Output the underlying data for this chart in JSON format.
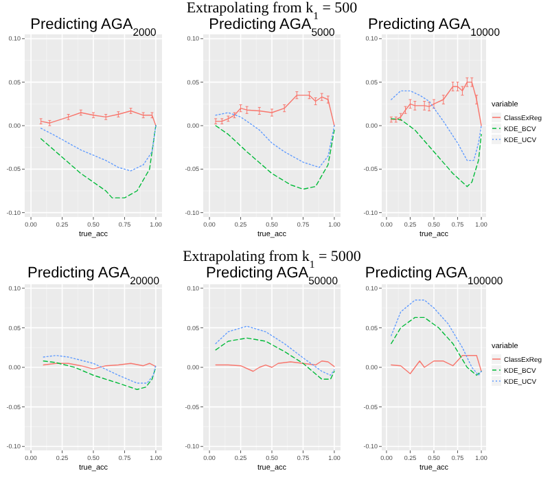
{
  "chart_data": [
    {
      "type": "line",
      "title": "Predicting AGA$_{2000}$",
      "xlabel": "true_acc",
      "xlim": [
        -0.05,
        1.05
      ],
      "ylim": [
        -0.105,
        0.105
      ],
      "xticks": [
        {
          "value": 0,
          "label": "0.00"
        },
        {
          "value": 0.25,
          "label": "0.25"
        },
        {
          "value": 0.5,
          "label": "0.50"
        },
        {
          "value": 0.75,
          "label": "0.75"
        },
        {
          "value": 1,
          "label": "1.00"
        }
      ],
      "yticks": [
        {
          "value": -0.1,
          "label": "-0.10"
        },
        {
          "value": -0.05,
          "label": "-0.05"
        },
        {
          "value": 0,
          "label": "0.00"
        },
        {
          "value": 0.05,
          "label": "0.05"
        },
        {
          "value": 0.1,
          "label": "0.10"
        }
      ],
      "grid": true,
      "series": [
        {
          "color": "#f8766d",
          "line_style": "solid",
          "x": [
            0.08,
            0.15,
            0.3,
            0.4,
            0.5,
            0.6,
            0.7,
            0.8,
            0.9,
            0.97,
            1.0
          ],
          "values": [
            0.005,
            0.003,
            0.01,
            0.015,
            0.012,
            0.01,
            0.013,
            0.017,
            0.012,
            0.012,
            0.0
          ],
          "errors": [
            0.003,
            0.003,
            0.003,
            0.003,
            0.003,
            0.003,
            0.003,
            0.003,
            0.003,
            0.003,
            null
          ]
        },
        {
          "color": "#00ba38",
          "line_style": "dashed",
          "x": [
            0.08,
            0.2,
            0.4,
            0.6,
            0.65,
            0.75,
            0.85,
            0.95,
            1.0
          ],
          "values": [
            -0.015,
            -0.03,
            -0.055,
            -0.075,
            -0.083,
            -0.083,
            -0.075,
            -0.05,
            0.0
          ]
        },
        {
          "color": "#619cff",
          "line_style": "dotted",
          "x": [
            0.08,
            0.2,
            0.4,
            0.6,
            0.7,
            0.8,
            0.9,
            0.97,
            1.0
          ],
          "values": [
            -0.003,
            -0.012,
            -0.028,
            -0.04,
            -0.048,
            -0.052,
            -0.045,
            -0.03,
            0.0
          ]
        }
      ]
    },
    {
      "type": "line",
      "title": "Predicting AGA$_{5000}$",
      "annotations": [
        "Extrapolating from k$_{1}$ = 500"
      ],
      "xlabel": "true_acc",
      "xlim": [
        -0.05,
        1.05
      ],
      "ylim": [
        -0.105,
        0.105
      ],
      "xticks": [
        {
          "value": 0,
          "label": "0.00"
        },
        {
          "value": 0.25,
          "label": "0.25"
        },
        {
          "value": 0.5,
          "label": "0.50"
        },
        {
          "value": 0.75,
          "label": "0.75"
        },
        {
          "value": 1,
          "label": "1.00"
        }
      ],
      "yticks": [
        {
          "value": -0.1,
          "label": "-0.10"
        },
        {
          "value": -0.05,
          "label": "-0.05"
        },
        {
          "value": 0,
          "label": "0.00"
        },
        {
          "value": 0.05,
          "label": "0.05"
        },
        {
          "value": 0.1,
          "label": "0.10"
        }
      ],
      "grid": true,
      "series": [
        {
          "color": "#f8766d",
          "line_style": "solid",
          "x": [
            0.05,
            0.1,
            0.15,
            0.2,
            0.25,
            0.3,
            0.4,
            0.5,
            0.6,
            0.7,
            0.8,
            0.85,
            0.9,
            0.95,
            1.0
          ],
          "values": [
            0.005,
            0.005,
            0.008,
            0.012,
            0.02,
            0.018,
            0.017,
            0.015,
            0.02,
            0.035,
            0.035,
            0.028,
            0.033,
            0.03,
            0.0
          ],
          "errors": [
            0.003,
            0.003,
            0.003,
            0.003,
            0.004,
            0.004,
            0.004,
            0.004,
            0.004,
            0.004,
            0.004,
            0.004,
            0.004,
            0.004,
            null
          ]
        },
        {
          "color": "#00ba38",
          "line_style": "dashed",
          "x": [
            0.05,
            0.15,
            0.3,
            0.5,
            0.65,
            0.75,
            0.85,
            0.95,
            1.0
          ],
          "values": [
            0.0,
            -0.01,
            -0.03,
            -0.055,
            -0.068,
            -0.073,
            -0.07,
            -0.045,
            -0.005
          ]
        },
        {
          "color": "#619cff",
          "line_style": "dotted",
          "x": [
            0.05,
            0.15,
            0.25,
            0.4,
            0.5,
            0.6,
            0.75,
            0.88,
            0.95,
            1.0
          ],
          "values": [
            0.012,
            0.015,
            0.01,
            -0.005,
            -0.02,
            -0.03,
            -0.042,
            -0.048,
            -0.035,
            0.0
          ]
        }
      ]
    },
    {
      "type": "line",
      "title": "Predicting AGA$_{10000}$",
      "xlabel": "true_acc",
      "legend": "right",
      "legend_title": "variable",
      "xlim": [
        -0.05,
        1.05
      ],
      "ylim": [
        -0.105,
        0.105
      ],
      "xticks": [
        {
          "value": 0,
          "label": "0.00"
        },
        {
          "value": 0.25,
          "label": "0.25"
        },
        {
          "value": 0.5,
          "label": "0.50"
        },
        {
          "value": 0.75,
          "label": "0.75"
        },
        {
          "value": 1,
          "label": "1.00"
        }
      ],
      "yticks": [
        {
          "value": -0.1,
          "label": "-0.10"
        },
        {
          "value": -0.05,
          "label": "-0.05"
        },
        {
          "value": 0,
          "label": "0.00"
        },
        {
          "value": 0.05,
          "label": "0.05"
        },
        {
          "value": 0.1,
          "label": "0.10"
        }
      ],
      "grid": true,
      "series": [
        {
          "name": "ClassExReg",
          "color": "#f8766d",
          "line_style": "solid",
          "x": [
            0.05,
            0.1,
            0.15,
            0.2,
            0.25,
            0.3,
            0.4,
            0.45,
            0.5,
            0.6,
            0.7,
            0.75,
            0.8,
            0.85,
            0.9,
            0.95,
            1.0
          ],
          "values": [
            0.007,
            0.007,
            0.01,
            0.018,
            0.025,
            0.023,
            0.023,
            0.022,
            0.025,
            0.03,
            0.045,
            0.045,
            0.04,
            0.05,
            0.05,
            0.03,
            0.0
          ],
          "errors": [
            0.003,
            0.003,
            0.004,
            0.004,
            0.005,
            0.005,
            0.005,
            0.005,
            0.005,
            0.005,
            0.005,
            0.005,
            0.005,
            0.005,
            0.005,
            0.005,
            null
          ]
        },
        {
          "name": "KDE_BCV",
          "color": "#00ba38",
          "line_style": "dashed",
          "x": [
            0.05,
            0.15,
            0.3,
            0.5,
            0.7,
            0.85,
            0.9,
            0.97,
            1.0
          ],
          "values": [
            0.008,
            0.007,
            -0.005,
            -0.03,
            -0.055,
            -0.07,
            -0.065,
            -0.04,
            -0.01
          ]
        },
        {
          "name": "KDE_UCV",
          "color": "#619cff",
          "line_style": "dotted",
          "x": [
            0.05,
            0.15,
            0.25,
            0.35,
            0.45,
            0.6,
            0.75,
            0.85,
            0.92,
            0.97,
            1.0
          ],
          "values": [
            0.03,
            0.04,
            0.04,
            0.035,
            0.028,
            0.005,
            -0.02,
            -0.04,
            -0.04,
            -0.02,
            0.0
          ]
        }
      ]
    },
    {
      "type": "line",
      "title": "Predicting AGA$_{20000}$",
      "xlabel": "true_acc",
      "xlim": [
        -0.05,
        1.05
      ],
      "ylim": [
        -0.105,
        0.105
      ],
      "xticks": [
        {
          "value": 0,
          "label": "0.00"
        },
        {
          "value": 0.25,
          "label": "0.25"
        },
        {
          "value": 0.5,
          "label": "0.50"
        },
        {
          "value": 0.75,
          "label": "0.75"
        },
        {
          "value": 1,
          "label": "1.00"
        }
      ],
      "yticks": [
        {
          "value": -0.1,
          "label": "-0.10"
        },
        {
          "value": -0.05,
          "label": "-0.05"
        },
        {
          "value": 0,
          "label": "0.00"
        },
        {
          "value": 0.05,
          "label": "0.05"
        },
        {
          "value": 0.1,
          "label": "0.10"
        }
      ],
      "grid": true,
      "series": [
        {
          "color": "#f8766d",
          "line_style": "solid",
          "x": [
            0.1,
            0.2,
            0.3,
            0.4,
            0.5,
            0.6,
            0.7,
            0.8,
            0.9,
            0.95,
            1.0
          ],
          "values": [
            0.003,
            0.005,
            0.005,
            0.002,
            -0.002,
            0.002,
            0.003,
            0.005,
            0.002,
            0.005,
            0.001
          ]
        },
        {
          "color": "#00ba38",
          "line_style": "dashed",
          "x": [
            0.1,
            0.2,
            0.35,
            0.5,
            0.7,
            0.85,
            0.92,
            0.97,
            1.0
          ],
          "values": [
            0.008,
            0.006,
            0.0,
            -0.01,
            -0.02,
            -0.028,
            -0.025,
            -0.015,
            0.0
          ]
        },
        {
          "color": "#619cff",
          "line_style": "dotted",
          "x": [
            0.1,
            0.2,
            0.3,
            0.5,
            0.7,
            0.85,
            0.93,
            0.98,
            1.0
          ],
          "values": [
            0.013,
            0.015,
            0.013,
            0.005,
            -0.01,
            -0.02,
            -0.02,
            -0.01,
            0.003
          ]
        }
      ]
    },
    {
      "type": "line",
      "title": "Predicting AGA$_{50000}$",
      "annotations": [
        "Extrapolating from k$_{1}$ = 5000"
      ],
      "xlabel": "true_acc",
      "xlim": [
        -0.05,
        1.05
      ],
      "ylim": [
        -0.105,
        0.105
      ],
      "xticks": [
        {
          "value": 0,
          "label": "0.00"
        },
        {
          "value": 0.25,
          "label": "0.25"
        },
        {
          "value": 0.5,
          "label": "0.50"
        },
        {
          "value": 0.75,
          "label": "0.75"
        },
        {
          "value": 1,
          "label": "1.00"
        }
      ],
      "yticks": [
        {
          "value": -0.1,
          "label": "-0.10"
        },
        {
          "value": -0.05,
          "label": "-0.05"
        },
        {
          "value": 0,
          "label": "0.00"
        },
        {
          "value": 0.05,
          "label": "0.05"
        },
        {
          "value": 0.1,
          "label": "0.10"
        }
      ],
      "grid": true,
      "series": [
        {
          "color": "#f8766d",
          "line_style": "solid",
          "x": [
            0.05,
            0.15,
            0.25,
            0.35,
            0.4,
            0.45,
            0.5,
            0.55,
            0.65,
            0.75,
            0.85,
            0.9,
            0.95,
            1.0
          ],
          "values": [
            0.003,
            0.003,
            0.002,
            -0.005,
            0.0,
            0.003,
            0.0,
            0.005,
            0.007,
            0.005,
            0.003,
            0.008,
            0.007,
            0.001
          ]
        },
        {
          "color": "#00ba38",
          "line_style": "dashed",
          "x": [
            0.05,
            0.15,
            0.3,
            0.45,
            0.6,
            0.75,
            0.9,
            0.97,
            1.0
          ],
          "values": [
            0.022,
            0.033,
            0.037,
            0.033,
            0.02,
            0.005,
            -0.015,
            -0.015,
            -0.005
          ]
        },
        {
          "color": "#619cff",
          "line_style": "dotted",
          "x": [
            0.05,
            0.15,
            0.3,
            0.45,
            0.6,
            0.75,
            0.9,
            0.97,
            1.0
          ],
          "values": [
            0.03,
            0.045,
            0.052,
            0.045,
            0.03,
            0.012,
            -0.005,
            -0.01,
            -0.003
          ]
        }
      ]
    },
    {
      "type": "line",
      "title": "Predicting AGA$_{100000}$",
      "xlabel": "true_acc",
      "legend": "right",
      "legend_title": "variable",
      "xlim": [
        -0.05,
        1.05
      ],
      "ylim": [
        -0.105,
        0.105
      ],
      "xticks": [
        {
          "value": 0,
          "label": "0.00"
        },
        {
          "value": 0.25,
          "label": "0.25"
        },
        {
          "value": 0.5,
          "label": "0.50"
        },
        {
          "value": 0.75,
          "label": "0.75"
        },
        {
          "value": 1,
          "label": "1.00"
        }
      ],
      "yticks": [
        {
          "value": -0.1,
          "label": "-0.10"
        },
        {
          "value": -0.05,
          "label": "-0.05"
        },
        {
          "value": 0,
          "label": "0.00"
        },
        {
          "value": 0.05,
          "label": "0.05"
        },
        {
          "value": 0.1,
          "label": "0.10"
        }
      ],
      "grid": true,
      "series": [
        {
          "name": "ClassExReg",
          "color": "#f8766d",
          "line_style": "solid",
          "x": [
            0.05,
            0.15,
            0.25,
            0.35,
            0.4,
            0.5,
            0.6,
            0.7,
            0.8,
            0.9,
            0.95,
            1.0
          ],
          "values": [
            0.003,
            0.002,
            -0.008,
            0.008,
            0.0,
            0.008,
            0.008,
            0.002,
            0.015,
            0.015,
            0.015,
            -0.005
          ]
        },
        {
          "name": "KDE_BCV",
          "color": "#00ba38",
          "line_style": "dashed",
          "x": [
            0.05,
            0.15,
            0.3,
            0.4,
            0.55,
            0.7,
            0.85,
            0.95,
            1.0
          ],
          "values": [
            0.03,
            0.05,
            0.063,
            0.063,
            0.05,
            0.03,
            0.0,
            -0.01,
            -0.005
          ]
        },
        {
          "name": "KDE_UCV",
          "color": "#619cff",
          "line_style": "dotted",
          "x": [
            0.05,
            0.15,
            0.3,
            0.4,
            0.5,
            0.65,
            0.8,
            0.9,
            0.97,
            1.0
          ],
          "values": [
            0.04,
            0.07,
            0.085,
            0.085,
            0.075,
            0.055,
            0.025,
            0.0,
            -0.01,
            -0.005
          ]
        }
      ]
    }
  ]
}
